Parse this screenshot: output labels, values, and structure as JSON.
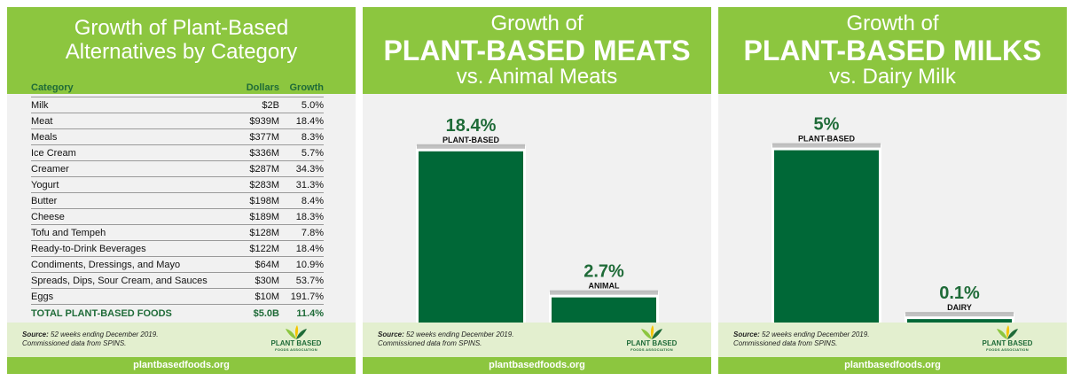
{
  "panel1": {
    "title_line1": "Growth of Plant-Based",
    "title_line2": "Alternatives by Category",
    "headers": {
      "category": "Category",
      "dollars": "Dollars",
      "growth": "Growth"
    },
    "rows": [
      {
        "category": "Milk",
        "dollars": "$2B",
        "growth": "5.0%"
      },
      {
        "category": "Meat",
        "dollars": "$939M",
        "growth": "18.4%"
      },
      {
        "category": "Meals",
        "dollars": "$377M",
        "growth": "8.3%"
      },
      {
        "category": "Ice Cream",
        "dollars": "$336M",
        "growth": "5.7%"
      },
      {
        "category": "Creamer",
        "dollars": "$287M",
        "growth": "34.3%"
      },
      {
        "category": "Yogurt",
        "dollars": "$283M",
        "growth": "31.3%"
      },
      {
        "category": "Butter",
        "dollars": "$198M",
        "growth": "8.4%"
      },
      {
        "category": "Cheese",
        "dollars": "$189M",
        "growth": "18.3%"
      },
      {
        "category": "Tofu and Tempeh",
        "dollars": "$128M",
        "growth": "7.8%"
      },
      {
        "category": "Ready-to-Drink Beverages",
        "dollars": "$122M",
        "growth": "18.4%"
      },
      {
        "category": "Condiments, Dressings, and Mayo",
        "dollars": "$64M",
        "growth": "10.9%"
      },
      {
        "category": "Spreads, Dips, Sour Cream, and Sauces",
        "dollars": "$30M",
        "growth": "53.7%"
      },
      {
        "category": "Eggs",
        "dollars": "$10M",
        "growth": "191.7%"
      }
    ],
    "total": {
      "category": "TOTAL PLANT-BASED FOODS",
      "dollars": "$5.0B",
      "growth": "11.4%"
    }
  },
  "panel2": {
    "line1": "Growth of",
    "line2": "PLANT-BASED MEATS",
    "line3": "vs. Animal Meats"
  },
  "panel3": {
    "line1": "Growth of",
    "line2": "PLANT-BASED MILKS",
    "line3": "vs. Dairy Milk"
  },
  "footer": {
    "source_label": "Source:",
    "source_text": " 52 weeks ending December 2019.",
    "source_line2": "Commissioned data from SPINS.",
    "logo_line1": "PLANT BASED",
    "logo_line2": "FOODS ASSOCIATION",
    "url": "plantbasedfoods.org"
  },
  "colors": {
    "header_green": "#8cc63f",
    "bar_green": "#006837",
    "text_green": "#1f6b38",
    "footer_tint": "#e3efcf"
  },
  "chart_data": [
    {
      "type": "table",
      "title": "Growth of Plant-Based Alternatives by Category",
      "columns": [
        "Category",
        "Dollars",
        "Growth"
      ]
    },
    {
      "type": "bar",
      "title": "Growth of PLANT-BASED MEATS vs. Animal Meats",
      "categories": [
        "PLANT-BASED",
        "ANIMAL"
      ],
      "values": [
        18.4,
        2.7
      ],
      "labels": [
        "18.4%",
        "2.7%"
      ],
      "ylim": [
        0,
        20
      ]
    },
    {
      "type": "bar",
      "title": "Growth of PLANT-BASED MILKS vs. Dairy Milk",
      "categories": [
        "PLANT-BASED",
        "DAIRY"
      ],
      "values": [
        5,
        0.1
      ],
      "labels": [
        "5%",
        "0.1%"
      ],
      "ylim": [
        0,
        5.4
      ]
    }
  ]
}
